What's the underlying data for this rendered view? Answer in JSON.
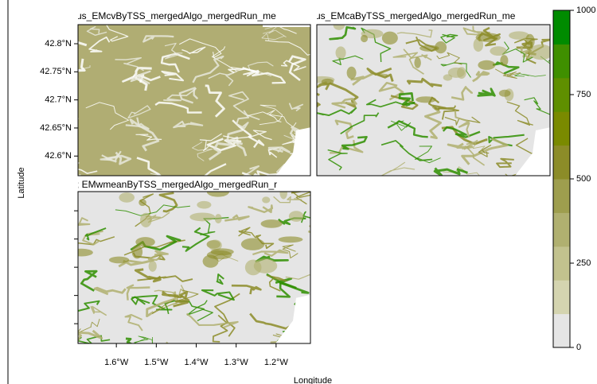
{
  "panels": [
    {
      "title": "us_EMcvByTSS_mergedAlgo_mergedRun_me"
    },
    {
      "title": "us_EMcaByTSS_mergedAlgo_mergedRun_me"
    },
    {
      "title": "; EMwmeanByTSS_mergedAlgo_mergedRun_r"
    }
  ],
  "xlabel": "Longitude",
  "ylabel": "Latitude",
  "xlim": [
    -1.696,
    -1.114
  ],
  "ylim": [
    42.565,
    42.834
  ],
  "xticks": [
    {
      "value": -1.6,
      "label": "1.6°W"
    },
    {
      "value": -1.5,
      "label": "1.5°W"
    },
    {
      "value": -1.4,
      "label": "1.4°W"
    },
    {
      "value": -1.3,
      "label": "1.3°W"
    },
    {
      "value": -1.2,
      "label": "1.2°W"
    }
  ],
  "yticks": [
    {
      "value": 42.6,
      "label": "42.6°N"
    },
    {
      "value": 42.65,
      "label": "42.65°N"
    },
    {
      "value": 42.7,
      "label": "42.7°N"
    },
    {
      "value": 42.75,
      "label": "42.75°N"
    },
    {
      "value": 42.8,
      "label": "42.8°N"
    }
  ],
  "colorbar": {
    "lim": [
      0,
      1000
    ],
    "ticks": [
      0,
      250,
      500,
      750,
      1000
    ],
    "colors": [
      "#e5e5e5",
      "#d4d4b0",
      "#c2c28e",
      "#b0b070",
      "#9e9e4e",
      "#8c8c28",
      "#7a8a00",
      "#5f8f00",
      "#3f8f00",
      "#008b00"
    ]
  }
}
